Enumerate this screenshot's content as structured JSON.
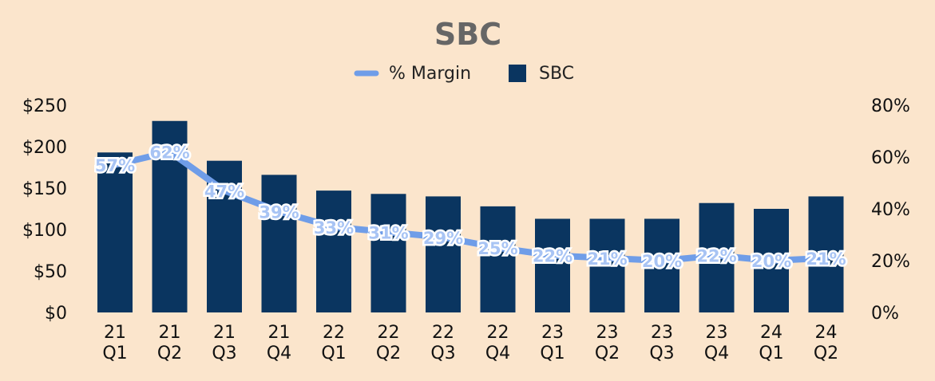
{
  "colors": {
    "background": "#fbe5cc",
    "bar": "#0a3560",
    "line": "#6f9de8",
    "title": "#666666"
  },
  "chart_data": {
    "type": "bar",
    "title": "SBC",
    "legend": [
      {
        "name": "% Margin",
        "kind": "line"
      },
      {
        "name": "SBC",
        "kind": "bar"
      }
    ],
    "legend_position": "top-center",
    "categories": [
      [
        "21",
        "Q1"
      ],
      [
        "21",
        "Q2"
      ],
      [
        "21",
        "Q3"
      ],
      [
        "21",
        "Q4"
      ],
      [
        "22",
        "Q1"
      ],
      [
        "22",
        "Q2"
      ],
      [
        "22",
        "Q3"
      ],
      [
        "22",
        "Q4"
      ],
      [
        "23",
        "Q1"
      ],
      [
        "23",
        "Q2"
      ],
      [
        "23",
        "Q3"
      ],
      [
        "23",
        "Q4"
      ],
      [
        "24",
        "Q1"
      ],
      [
        "24",
        "Q2"
      ]
    ],
    "series": [
      {
        "name": "SBC",
        "type": "bar",
        "axis": "left",
        "values": [
          193,
          231,
          183,
          166,
          147,
          143,
          140,
          128,
          113,
          113,
          113,
          132,
          125,
          140
        ]
      },
      {
        "name": "% Margin",
        "type": "line",
        "axis": "right",
        "values": [
          57,
          62,
          47,
          39,
          33,
          31,
          29,
          25,
          22,
          21,
          20,
          22,
          20,
          21
        ],
        "labels": [
          "57%",
          "62%",
          "47%",
          "39%",
          "33%",
          "31%",
          "29%",
          "25%",
          "22%",
          "21%",
          "20%",
          "22%",
          "20%",
          "21%"
        ]
      }
    ],
    "y_left": {
      "min": 0,
      "max": 250,
      "ticks": [
        {
          "value": 0,
          "label": "$0"
        },
        {
          "value": 50,
          "label": "$50"
        },
        {
          "value": 100,
          "label": "$100"
        },
        {
          "value": 150,
          "label": "$150"
        },
        {
          "value": 200,
          "label": "$200"
        },
        {
          "value": 250,
          "label": "$250"
        }
      ]
    },
    "y_right": {
      "min": 0,
      "max": 80,
      "ticks": [
        {
          "value": 0,
          "label": "0%"
        },
        {
          "value": 20,
          "label": "20%"
        },
        {
          "value": 40,
          "label": "40%"
        },
        {
          "value": 60,
          "label": "60%"
        },
        {
          "value": 80,
          "label": "80%"
        }
      ]
    },
    "grid": false
  }
}
